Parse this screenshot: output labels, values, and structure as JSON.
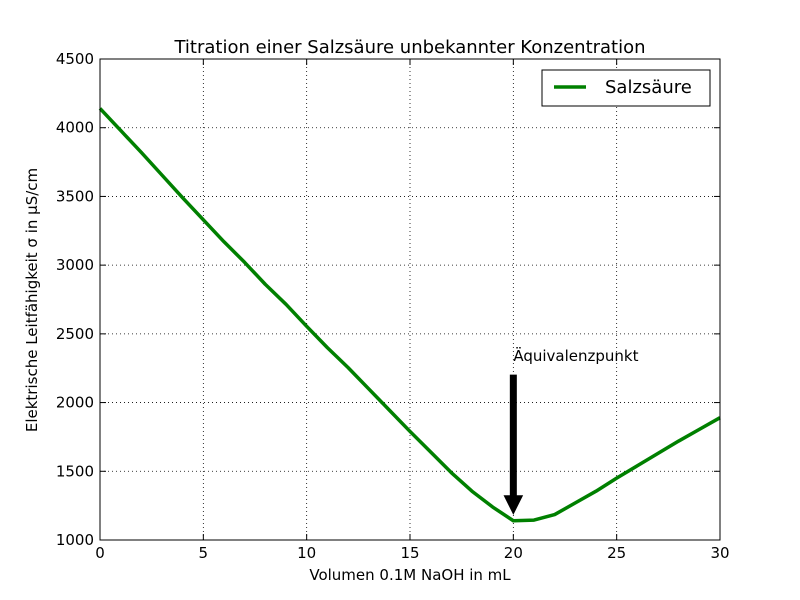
{
  "chart_data": {
    "type": "line",
    "title": "Titration einer Salzsäure unbekannter Konzentration",
    "xlabel": "Volumen 0.1M NaOH in mL",
    "ylabel": "Elektrische Leitfähigkeit σ in μS/cm",
    "xlim": [
      0,
      30
    ],
    "ylim": [
      1000,
      4500
    ],
    "xticks": [
      "0",
      "5",
      "10",
      "15",
      "20",
      "25",
      "30"
    ],
    "yticks": [
      "1000",
      "1500",
      "2000",
      "2500",
      "3000",
      "3500",
      "4000",
      "4500"
    ],
    "grid": true,
    "legend_position": "top-right",
    "series": [
      {
        "name": "Salzsäure",
        "color": "#008000",
        "x": [
          0,
          1,
          2,
          3,
          4,
          5,
          6,
          7,
          8,
          9,
          10,
          11,
          12,
          13,
          14,
          15,
          16,
          17,
          18,
          19,
          20,
          21,
          22,
          23,
          24,
          25,
          26,
          27,
          28,
          29,
          30
        ],
        "y": [
          4140,
          3980,
          3820,
          3655,
          3490,
          3330,
          3170,
          3020,
          2860,
          2715,
          2555,
          2400,
          2255,
          2100,
          1945,
          1790,
          1640,
          1490,
          1355,
          1240,
          1140,
          1145,
          1185,
          1270,
          1355,
          1450,
          1540,
          1630,
          1720,
          1805,
          1890
        ]
      }
    ],
    "annotations": [
      {
        "text": "Äquivalenzpunkt",
        "x": 20,
        "y": 1140,
        "arrow_from_y": 2200
      }
    ]
  }
}
